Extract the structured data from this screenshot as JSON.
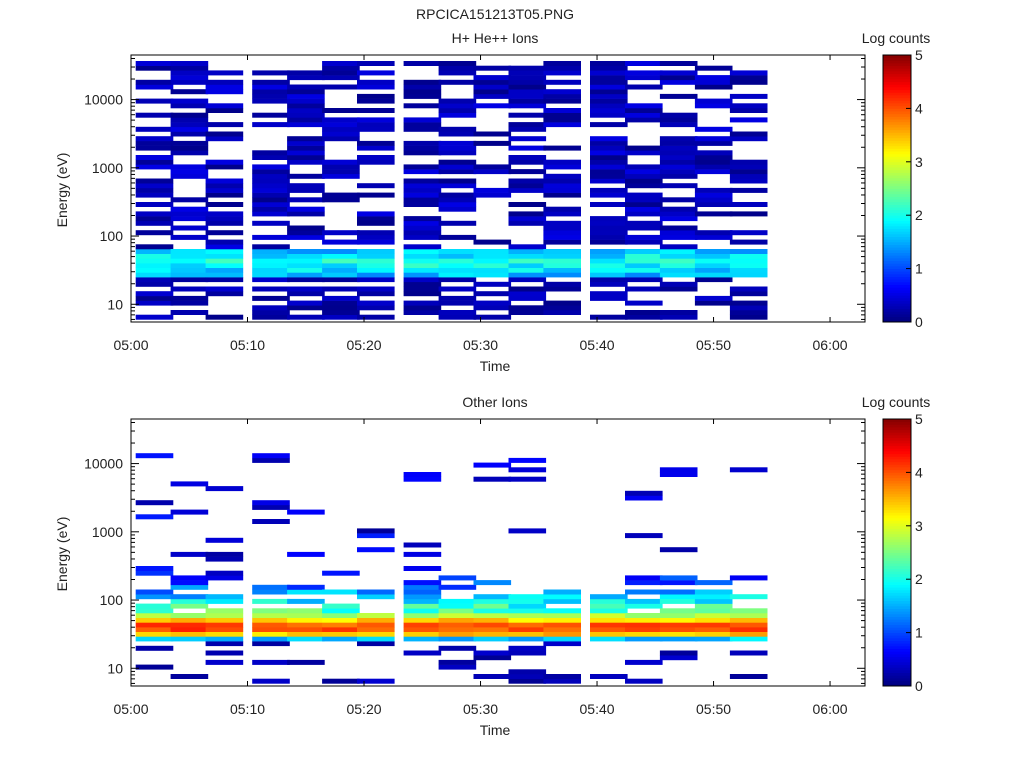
{
  "page_title": "RPCICA151213T05.PNG",
  "colors": {
    "background": "#ffffff",
    "axis": "#000000",
    "colormap": [
      "#00008f",
      "#0000ff",
      "#0080ff",
      "#00ffff",
      "#80ff80",
      "#ffff00",
      "#ff8000",
      "#ff0000",
      "#800000"
    ]
  },
  "chart_data": [
    {
      "type": "heatmap",
      "title": "H+ He++ Ions",
      "xlabel": "Time",
      "ylabel": "Energy (eV)",
      "y_scale": "log",
      "xlim": [
        "05:00",
        "06:03"
      ],
      "ylim": [
        5.5,
        45000
      ],
      "x_ticks": [
        "05:00",
        "05:10",
        "05:20",
        "05:30",
        "05:40",
        "05:50",
        "06:00"
      ],
      "y_ticks": [
        "10",
        "100",
        "1000",
        "10000"
      ],
      "colorbar": {
        "label": "Log counts",
        "min": 0,
        "max": 5,
        "ticks": [
          "0",
          "1",
          "2",
          "3",
          "4",
          "5"
        ]
      },
      "time_columns": [
        "05:02",
        "05:05",
        "05:08",
        "05:12",
        "05:15",
        "05:18",
        "05:21",
        "05:25",
        "05:28",
        "05:31",
        "05:34",
        "05:37",
        "05:41",
        "05:44",
        "05:47",
        "05:50",
        "05:53"
      ],
      "profile": "proton",
      "seed": 7
    },
    {
      "type": "heatmap",
      "title": "Other Ions",
      "xlabel": "Time",
      "ylabel": "Energy (eV)",
      "y_scale": "log",
      "xlim": [
        "05:00",
        "06:03"
      ],
      "ylim": [
        5.5,
        45000
      ],
      "x_ticks": [
        "05:00",
        "05:10",
        "05:20",
        "05:30",
        "05:40",
        "05:50",
        "06:00"
      ],
      "y_ticks": [
        "10",
        "100",
        "1000",
        "10000"
      ],
      "colorbar": {
        "label": "Log counts",
        "min": 0,
        "max": 5,
        "ticks": [
          "0",
          "1",
          "2",
          "3",
          "4",
          "5"
        ]
      },
      "time_columns": [
        "05:02",
        "05:05",
        "05:08",
        "05:12",
        "05:15",
        "05:18",
        "05:21",
        "05:25",
        "05:28",
        "05:31",
        "05:34",
        "05:37",
        "05:41",
        "05:44",
        "05:47",
        "05:50",
        "05:53"
      ],
      "profile": "heavy",
      "seed": 13
    }
  ]
}
